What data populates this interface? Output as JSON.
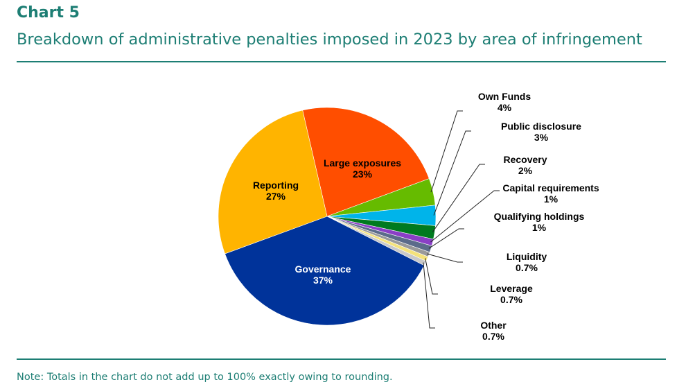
{
  "header": {
    "chart_number": "Chart 5",
    "title": "Breakdown of administrative penalties imposed in 2023 by area of infringement"
  },
  "footer": {
    "note": "Note: Totals in the chart do not add up to 100% exactly owing to rounding."
  },
  "chart_data": {
    "type": "pie",
    "title": "Breakdown of administrative penalties imposed in 2023 by area of infringement",
    "unit": "%",
    "slices": [
      {
        "label": "Large exposures",
        "value": 23,
        "value_label": "23%",
        "color": "#ff4e00"
      },
      {
        "label": "Own Funds",
        "value": 4,
        "value_label": "4%",
        "color": "#66bb00"
      },
      {
        "label": "Public disclosure",
        "value": 3,
        "value_label": "3%",
        "color": "#00b4ea"
      },
      {
        "label": "Recovery",
        "value": 2,
        "value_label": "2%",
        "color": "#007a1f"
      },
      {
        "label": "Capital requirements",
        "value": 1,
        "value_label": "1%",
        "color": "#8a3fc6"
      },
      {
        "label": "Qualifying holdings",
        "value": 1,
        "value_label": "1%",
        "color": "#5b6b8a"
      },
      {
        "label": "Liquidity",
        "value": 0.7,
        "value_label": "0.7%",
        "color": "#9a9a9a"
      },
      {
        "label": "Leverage",
        "value": 0.7,
        "value_label": "0.7%",
        "color": "#f4e27c"
      },
      {
        "label": "Other",
        "value": 0.7,
        "value_label": "0.7%",
        "color": "#c9c9c9"
      },
      {
        "label": "Governance",
        "value": 37,
        "value_label": "37%",
        "color": "#00339a"
      },
      {
        "label": "Reporting",
        "value": 27,
        "value_label": "27%",
        "color": "#ffb400"
      }
    ],
    "start_angle_deg": -13,
    "direction": "clockwise",
    "label_placement": {
      "inside": [
        "Large exposures",
        "Governance",
        "Reporting"
      ],
      "outside": "right with leader lines"
    }
  }
}
